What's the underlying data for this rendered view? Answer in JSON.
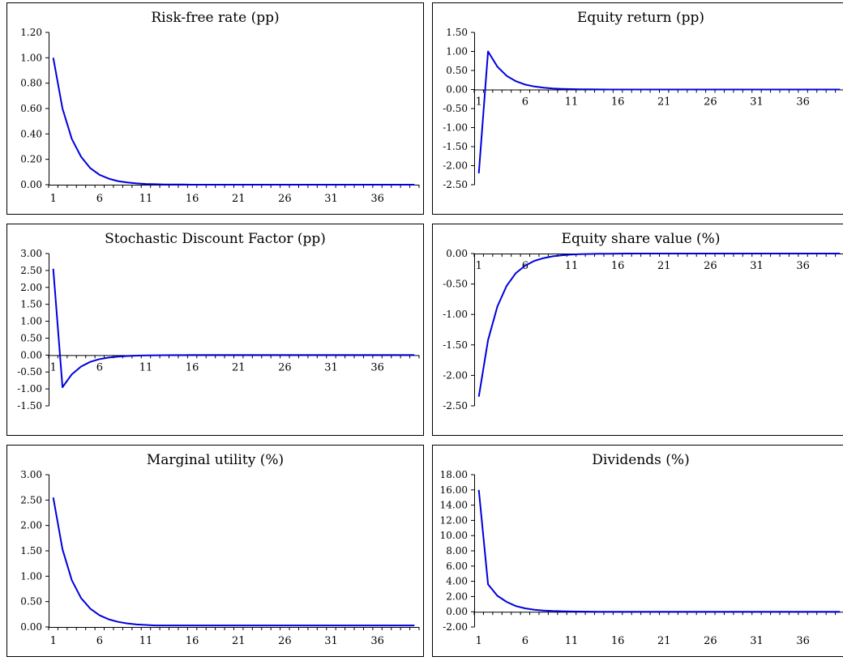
{
  "chart_data": [
    {
      "type": "line",
      "title": "Risk-free rate (pp)",
      "ylim": [
        0,
        1.2
      ],
      "yticks": [
        "0.00",
        "0.20",
        "0.40",
        "0.60",
        "0.80",
        "1.00",
        "1.20"
      ],
      "xticks": [
        "1",
        "6",
        "11",
        "16",
        "21",
        "26",
        "31",
        "36"
      ],
      "x_label_position": "bottom",
      "line_color": "#0000dd",
      "values": [
        1.0,
        0.6,
        0.36,
        0.22,
        0.13,
        0.078,
        0.047,
        0.028,
        0.017,
        0.01,
        0.006,
        0.004,
        0.002,
        0.001,
        0.001,
        0,
        0,
        0,
        0,
        0,
        0,
        0,
        0,
        0,
        0,
        0,
        0,
        0,
        0,
        0,
        0,
        0,
        0,
        0,
        0,
        0,
        0,
        0,
        0,
        0
      ]
    },
    {
      "type": "line",
      "title": "Equity return (pp)",
      "ylim": [
        -2.5,
        1.5
      ],
      "yticks": [
        "-2.50",
        "-2.00",
        "-1.50",
        "-1.00",
        "-0.50",
        "0.00",
        "0.50",
        "1.00",
        "1.50"
      ],
      "xticks": [
        "1",
        "6",
        "11",
        "16",
        "21",
        "26",
        "31",
        "36"
      ],
      "x_label_position": "zero",
      "line_color": "#0000dd",
      "values": [
        -2.2,
        1.0,
        0.6,
        0.36,
        0.22,
        0.13,
        0.078,
        0.047,
        0.028,
        0.017,
        0.01,
        0.006,
        0.004,
        0.002,
        0.001,
        0,
        0,
        0,
        0,
        0,
        0,
        0,
        0,
        0,
        0,
        0,
        0,
        0,
        0,
        0,
        0,
        0,
        0,
        0,
        0,
        0,
        0,
        0,
        0,
        0
      ]
    },
    {
      "type": "line",
      "title": "Stochastic Discount Factor (pp)",
      "ylim": [
        -1.5,
        3.0
      ],
      "yticks": [
        "-1.50",
        "-1.00",
        "-0.50",
        "0.00",
        "0.50",
        "1.00",
        "1.50",
        "2.00",
        "2.50",
        "3.00"
      ],
      "xticks": [
        "1",
        "6",
        "11",
        "16",
        "21",
        "26",
        "31",
        "36"
      ],
      "x_label_position": "zero",
      "line_color": "#0000dd",
      "values": [
        2.55,
        -0.95,
        -0.57,
        -0.34,
        -0.2,
        -0.12,
        -0.074,
        -0.044,
        -0.027,
        -0.016,
        -0.01,
        -0.006,
        -0.004,
        -0.002,
        -0.001,
        0,
        0,
        0,
        0,
        0,
        0,
        0,
        0,
        0,
        0,
        0,
        0,
        0,
        0,
        0,
        0,
        0,
        0,
        0,
        0,
        0,
        0,
        0,
        0,
        0
      ]
    },
    {
      "type": "line",
      "title": "Equity share value (%)",
      "ylim": [
        -2.5,
        0.0
      ],
      "yticks": [
        "-2.50",
        "-2.00",
        "-1.50",
        "-1.00",
        "-0.50",
        "0.00"
      ],
      "xticks": [
        "1",
        "6",
        "11",
        "16",
        "21",
        "26",
        "31",
        "36"
      ],
      "x_label_position": "zero",
      "line_color": "#0000dd",
      "values": [
        -2.35,
        -1.42,
        -0.87,
        -0.53,
        -0.32,
        -0.2,
        -0.12,
        -0.075,
        -0.045,
        -0.028,
        -0.017,
        -0.01,
        -0.006,
        -0.004,
        -0.002,
        -0.001,
        0,
        0,
        0,
        0,
        0,
        0,
        0,
        0,
        0,
        0,
        0,
        0,
        0,
        0,
        0,
        0,
        0,
        0,
        0,
        0,
        0,
        0,
        0,
        0
      ]
    },
    {
      "type": "line",
      "title": "Marginal utility (%)",
      "ylim": [
        0,
        3.0
      ],
      "yticks": [
        "0.00",
        "0.50",
        "1.00",
        "1.50",
        "2.00",
        "2.50",
        "3.00"
      ],
      "xticks": [
        "1",
        "6",
        "11",
        "16",
        "21",
        "26",
        "31",
        "36"
      ],
      "x_label_position": "bottom",
      "line_color": "#0000dd",
      "values": [
        2.55,
        1.53,
        0.92,
        0.57,
        0.36,
        0.23,
        0.15,
        0.1,
        0.07,
        0.05,
        0.04,
        0.03,
        0.03,
        0.03,
        0.03,
        0.03,
        0.03,
        0.03,
        0.03,
        0.03,
        0.03,
        0.03,
        0.03,
        0.03,
        0.03,
        0.03,
        0.03,
        0.03,
        0.03,
        0.03,
        0.03,
        0.03,
        0.03,
        0.03,
        0.03,
        0.03,
        0.03,
        0.03,
        0.03,
        0.03
      ]
    },
    {
      "type": "line",
      "title": "Dividends (%)",
      "ylim": [
        -2.0,
        18.0
      ],
      "yticks": [
        "-2.00",
        "0.00",
        "2.00",
        "4.00",
        "6.00",
        "8.00",
        "10.00",
        "12.00",
        "14.00",
        "16.00",
        "18.00"
      ],
      "xticks": [
        "1",
        "6",
        "11",
        "16",
        "21",
        "26",
        "31",
        "36"
      ],
      "x_label_position": "bottom",
      "line_color": "#0000dd",
      "values": [
        16.0,
        3.6,
        2.1,
        1.3,
        0.75,
        0.45,
        0.27,
        0.16,
        0.1,
        0.06,
        0.03,
        0.02,
        0.01,
        0,
        0,
        0,
        0,
        0,
        0,
        0,
        0,
        0,
        0,
        0,
        0,
        0,
        0,
        0,
        0,
        0,
        0,
        0,
        0,
        0,
        0,
        0,
        0,
        0,
        0,
        0
      ]
    }
  ]
}
